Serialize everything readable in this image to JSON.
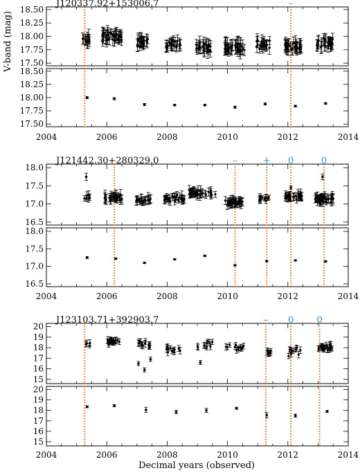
{
  "ylabel": "V-band (mag)",
  "xlabel": "Decimal years (observed)",
  "marker_color": "#1f8fd0",
  "vline_color": "#d9741c",
  "chart_data": [
    {
      "type": "scatter",
      "title": "J120337.92+153006.7",
      "xlim": [
        2004,
        2014
      ],
      "xticks": [
        "2004",
        "2006",
        "2008",
        "2010",
        "2012",
        "2014"
      ],
      "ylim": [
        17.45,
        18.55
      ],
      "yticks": [
        "18.50",
        "18.25",
        "18.00",
        "17.75",
        "17.50"
      ],
      "ytick_values": [
        18.5,
        18.25,
        18.0,
        17.75,
        17.5
      ],
      "vlines": [
        2005.27,
        2012.1
      ],
      "vline_markers": [
        {
          "x": 2012.1,
          "label": "–"
        }
      ],
      "clusters": [
        {
          "x0": 2005.2,
          "x1": 2005.45,
          "y": 17.95,
          "spread": 0.1,
          "n": 14,
          "err": 0.09
        },
        {
          "x0": 2005.85,
          "x1": 2006.5,
          "y": 18.0,
          "spread": 0.12,
          "n": 40,
          "err": 0.1
        },
        {
          "x0": 2007.0,
          "x1": 2007.45,
          "y": 17.9,
          "spread": 0.1,
          "n": 22,
          "err": 0.1
        },
        {
          "x0": 2007.95,
          "x1": 2008.45,
          "y": 17.85,
          "spread": 0.09,
          "n": 22,
          "err": 0.1
        },
        {
          "x0": 2008.95,
          "x1": 2009.45,
          "y": 17.8,
          "spread": 0.1,
          "n": 24,
          "err": 0.1
        },
        {
          "x0": 2009.9,
          "x1": 2010.6,
          "y": 17.8,
          "spread": 0.11,
          "n": 38,
          "err": 0.11
        },
        {
          "x0": 2010.95,
          "x1": 2011.4,
          "y": 17.85,
          "spread": 0.1,
          "n": 20,
          "err": 0.1
        },
        {
          "x0": 2011.9,
          "x1": 2012.45,
          "y": 17.8,
          "spread": 0.1,
          "n": 34,
          "err": 0.1
        },
        {
          "x0": 2012.95,
          "x1": 2013.5,
          "y": 17.88,
          "spread": 0.1,
          "n": 30,
          "err": 0.1
        }
      ],
      "binned": {
        "x": [
          2005.35,
          2006.25,
          2007.25,
          2008.25,
          2009.25,
          2010.25,
          2011.25,
          2012.25,
          2013.25
        ],
        "y": [
          18.0,
          17.98,
          17.87,
          17.86,
          17.86,
          17.82,
          17.88,
          17.84,
          17.89
        ],
        "err": [
          0.02,
          0.02,
          0.02,
          0.015,
          0.015,
          0.02,
          0.02,
          0.015,
          0.015
        ]
      }
    },
    {
      "type": "scatter",
      "title": "J121442.30+280329.0",
      "xlim": [
        2004,
        2014
      ],
      "xticks": [
        "2004",
        "2006",
        "2008",
        "2010",
        "2012",
        "2014"
      ],
      "ylim": [
        16.42,
        18.1
      ],
      "yticks": [
        "18.0",
        "17.5",
        "17.0",
        "16.5"
      ],
      "ytick_values": [
        18.0,
        17.5,
        17.0,
        16.5
      ],
      "vlines": [
        2006.25,
        2010.25,
        2011.3,
        2012.1,
        2013.2
      ],
      "vline_markers": [
        {
          "x": 2010.25,
          "label": "–"
        },
        {
          "x": 2011.3,
          "label": "+"
        },
        {
          "x": 2012.1,
          "label": "0"
        },
        {
          "x": 2013.2,
          "label": "0"
        }
      ],
      "clusters": [
        {
          "x0": 2005.25,
          "x1": 2005.45,
          "y": 17.2,
          "spread": 0.1,
          "n": 8,
          "err": 0.1
        },
        {
          "x0": 2005.9,
          "x1": 2006.5,
          "y": 17.18,
          "spread": 0.12,
          "n": 30,
          "err": 0.12
        },
        {
          "x0": 2006.95,
          "x1": 2007.5,
          "y": 17.12,
          "spread": 0.1,
          "n": 22,
          "err": 0.1
        },
        {
          "x0": 2007.9,
          "x1": 2008.6,
          "y": 17.15,
          "spread": 0.1,
          "n": 30,
          "err": 0.1
        },
        {
          "x0": 2008.7,
          "x1": 2009.6,
          "y": 17.3,
          "spread": 0.1,
          "n": 36,
          "err": 0.1
        },
        {
          "x0": 2009.9,
          "x1": 2010.5,
          "y": 17.05,
          "spread": 0.1,
          "n": 36,
          "err": 0.1
        },
        {
          "x0": 2010.95,
          "x1": 2011.4,
          "y": 17.15,
          "spread": 0.08,
          "n": 12,
          "err": 0.08
        },
        {
          "x0": 2011.9,
          "x1": 2012.5,
          "y": 17.2,
          "spread": 0.1,
          "n": 32,
          "err": 0.1
        },
        {
          "x0": 2012.9,
          "x1": 2013.5,
          "y": 17.15,
          "spread": 0.12,
          "n": 38,
          "err": 0.12
        }
      ],
      "outliers": [
        {
          "x": 2005.32,
          "y": 17.75,
          "err": 0.1
        },
        {
          "x": 2012.1,
          "y": 17.45,
          "err": 0.05
        },
        {
          "x": 2013.15,
          "y": 17.75,
          "err": 0.08
        }
      ],
      "binned": {
        "x": [
          2005.35,
          2006.3,
          2007.25,
          2008.25,
          2009.25,
          2010.25,
          2011.3,
          2012.25,
          2013.25
        ],
        "y": [
          17.25,
          17.22,
          17.1,
          17.2,
          17.3,
          17.03,
          17.15,
          17.17,
          17.14
        ],
        "err": [
          0.03,
          0.02,
          0.015,
          0.015,
          0.02,
          0.02,
          0.015,
          0.015,
          0.015
        ]
      }
    },
    {
      "type": "scatter",
      "title": "J123103.71+392903.7",
      "xlim": [
        2004,
        2014
      ],
      "xticks": [
        "2004",
        "2006",
        "2008",
        "2010",
        "2012",
        "2014"
      ],
      "ylim": [
        14.6,
        20.3
      ],
      "yticks": [
        "20",
        "19",
        "18",
        "17",
        "16",
        "15"
      ],
      "ytick_values": [
        20,
        19,
        18,
        17,
        16,
        15
      ],
      "vlines": [
        2005.27,
        2011.27,
        2012.1,
        2013.05
      ],
      "vline_markers": [
        {
          "x": 2011.27,
          "label": "–"
        },
        {
          "x": 2012.1,
          "label": "0"
        },
        {
          "x": 2013.05,
          "label": "0"
        }
      ],
      "clusters": [
        {
          "x0": 2005.3,
          "x1": 2005.45,
          "y": 18.3,
          "spread": 0.3,
          "n": 4,
          "err": 0.25
        },
        {
          "x0": 2006.0,
          "x1": 2006.45,
          "y": 18.6,
          "spread": 0.35,
          "n": 18,
          "err": 0.25
        },
        {
          "x0": 2007.0,
          "x1": 2007.45,
          "y": 18.3,
          "spread": 0.5,
          "n": 14,
          "err": 0.25
        },
        {
          "x0": 2007.95,
          "x1": 2008.5,
          "y": 17.8,
          "spread": 0.5,
          "n": 12,
          "err": 0.25
        },
        {
          "x0": 2008.95,
          "x1": 2009.5,
          "y": 18.2,
          "spread": 0.6,
          "n": 10,
          "err": 0.25
        },
        {
          "x0": 2009.95,
          "x1": 2010.6,
          "y": 18.1,
          "spread": 0.4,
          "n": 12,
          "err": 0.25
        },
        {
          "x0": 2011.2,
          "x1": 2011.45,
          "y": 17.5,
          "spread": 0.4,
          "n": 8,
          "err": 0.25
        },
        {
          "x0": 2012.0,
          "x1": 2012.45,
          "y": 17.6,
          "spread": 0.5,
          "n": 12,
          "err": 0.25
        },
        {
          "x0": 2012.95,
          "x1": 2013.55,
          "y": 18.0,
          "spread": 0.4,
          "n": 24,
          "err": 0.25
        }
      ],
      "outliers": [
        {
          "x": 2007.05,
          "y": 16.5,
          "err": 0.2
        },
        {
          "x": 2007.25,
          "y": 15.9,
          "err": 0.2
        },
        {
          "x": 2007.45,
          "y": 16.9,
          "err": 0.2
        },
        {
          "x": 2009.1,
          "y": 16.6,
          "err": 0.2
        }
      ],
      "binned": {
        "x": [
          2005.35,
          2006.25,
          2007.3,
          2008.3,
          2009.3,
          2010.3,
          2011.3,
          2012.25,
          2013.3
        ],
        "y": [
          18.35,
          18.45,
          18.05,
          17.85,
          18.0,
          18.2,
          17.55,
          17.5,
          17.9
        ],
        "err": [
          0.1,
          0.1,
          0.25,
          0.15,
          0.2,
          0.1,
          0.25,
          0.15,
          0.1
        ]
      }
    }
  ]
}
